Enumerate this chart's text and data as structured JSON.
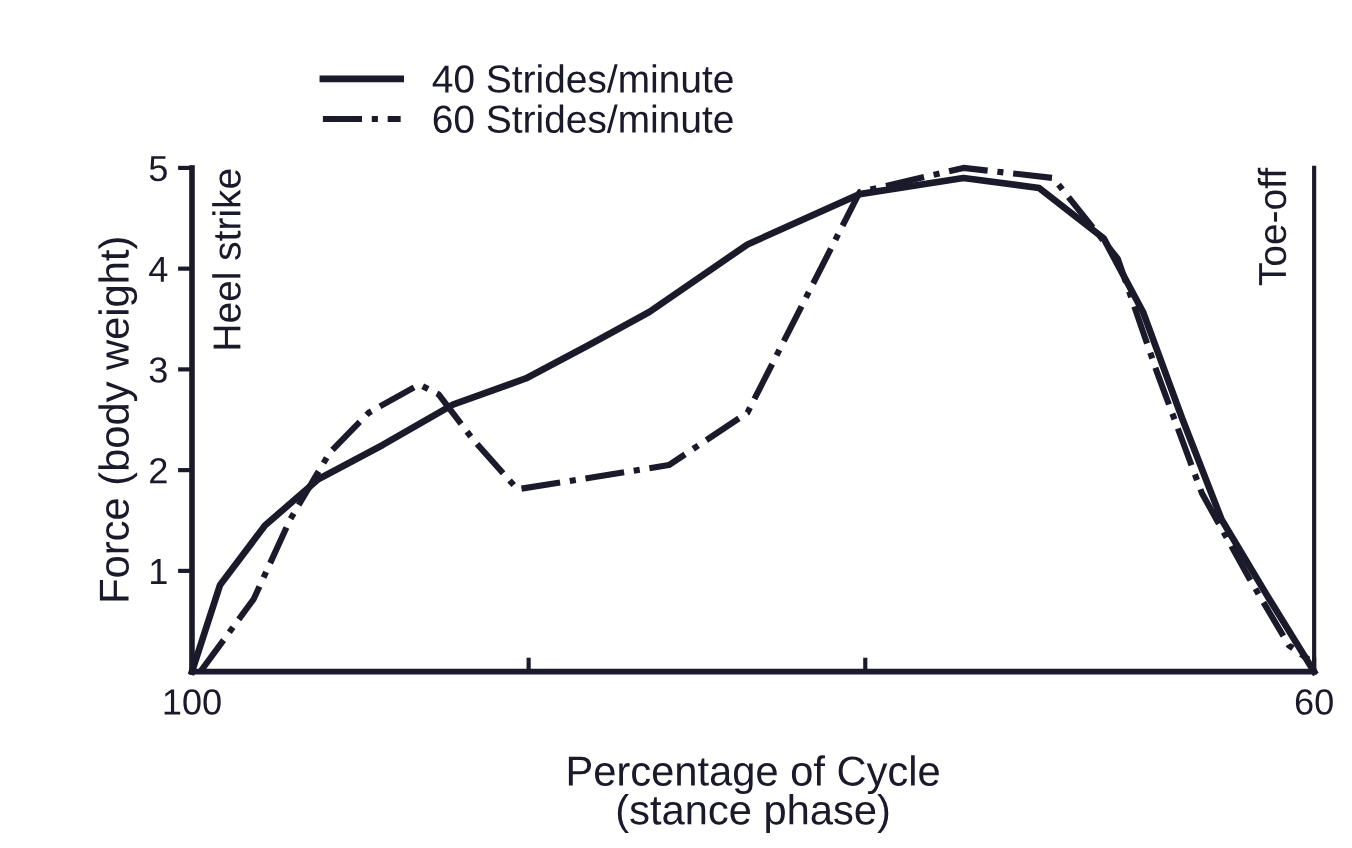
{
  "chart_data": {
    "type": "line",
    "xlabel": "Percentage of Cycle\n(stance phase)",
    "ylabel": "Force (body weight)",
    "xlim": [
      100,
      60
    ],
    "xticks": [
      100,
      {
        "value": 88,
        "label": null
      },
      {
        "value": 76,
        "label": null
      },
      60
    ],
    "ylim": [
      0,
      5
    ],
    "yticks": [
      1,
      2,
      3,
      4,
      5
    ],
    "grid": false,
    "legend": "top",
    "ref_lines": [
      {
        "axis": "x",
        "value": 100,
        "label": "Heel strike"
      },
      {
        "axis": "x",
        "value": 60,
        "label": "Toe-off"
      }
    ],
    "series": [
      {
        "name": "40 Strides/minute",
        "color": "#1a1a2a",
        "line_style": "solid",
        "x": [
          100,
          99.0,
          97.4,
          95.5,
          93.2,
          90.7,
          88.1,
          85.8,
          83.7,
          80.2,
          76.2,
          72.5,
          69.8,
          67.5,
          66.1,
          64.7,
          63.3,
          61.6,
          60
        ],
        "values": [
          0,
          0.86,
          1.45,
          1.91,
          2.25,
          2.65,
          2.91,
          3.25,
          3.57,
          4.24,
          4.74,
          4.9,
          4.8,
          4.3,
          3.57,
          2.51,
          1.51,
          0.72,
          0
        ]
      },
      {
        "name": "60 Strides/minute",
        "color": "#1a1a2a",
        "line_style": "dashdot",
        "x": [
          99.7,
          97.8,
          96.5,
          95.1,
          93.7,
          91.9,
          91.2,
          90.0,
          88.4,
          83.0,
          80.2,
          76.2,
          72.5,
          69.3,
          67.0,
          65.6,
          64.0,
          62.3,
          60.9,
          60.2
        ],
        "values": [
          0,
          0.72,
          1.51,
          2.17,
          2.57,
          2.85,
          2.75,
          2.31,
          1.81,
          2.05,
          2.57,
          4.76,
          5.0,
          4.9,
          4.1,
          2.97,
          1.77,
          0.92,
          0.26,
          0.12
        ]
      }
    ]
  }
}
